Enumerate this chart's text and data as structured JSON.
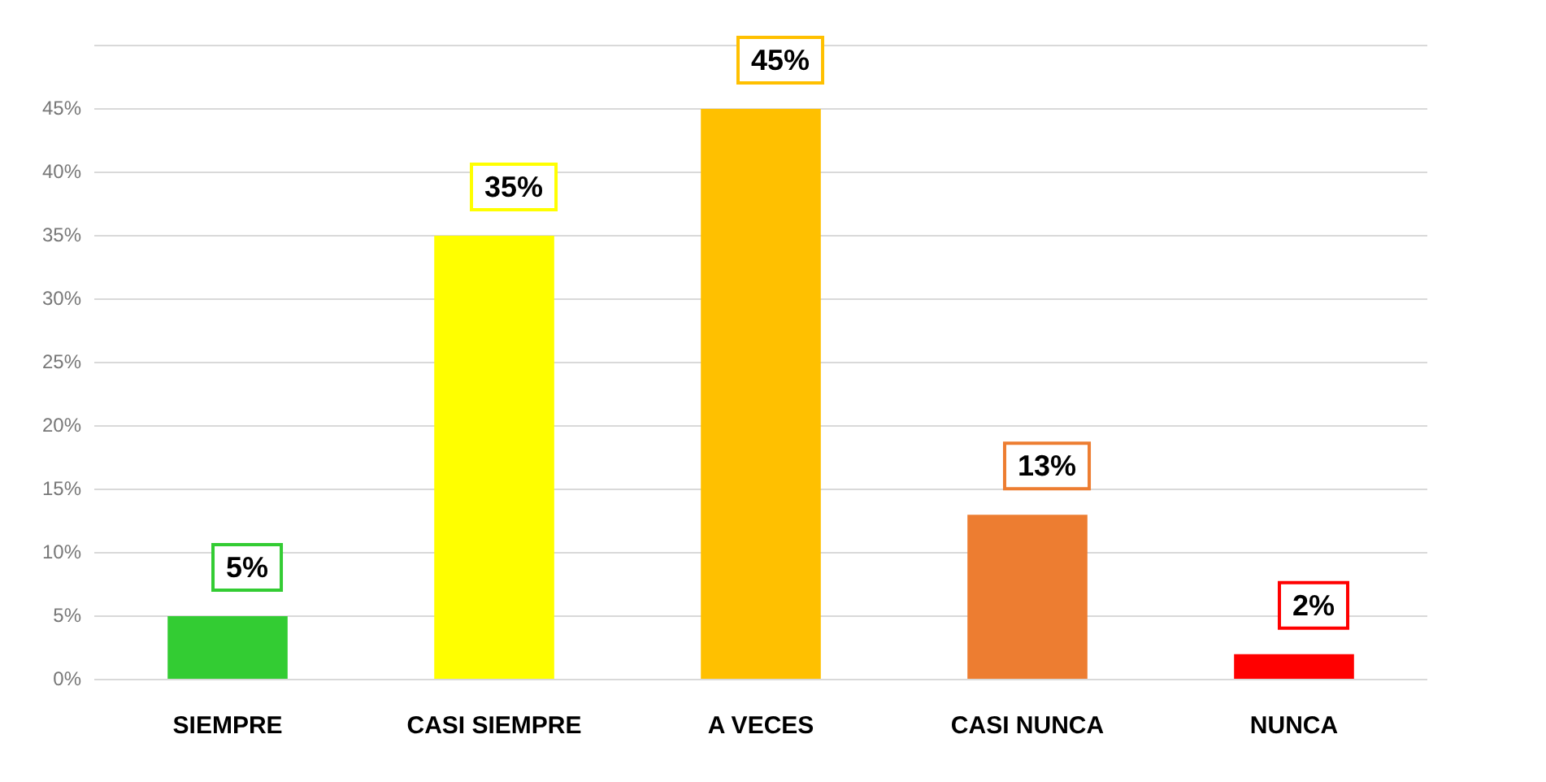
{
  "chart_data": {
    "type": "bar",
    "categories": [
      "SIEMPRE",
      "CASI SIEMPRE",
      "A VECES",
      "CASI NUNCA",
      "NUNCA"
    ],
    "values": [
      5,
      35,
      45,
      13,
      2
    ],
    "colors": [
      "#33cc33",
      "#ffff00",
      "#ffc000",
      "#ed7d31",
      "#ff0000"
    ],
    "value_labels": [
      "5%",
      "35%",
      "45%",
      "13%",
      "2%"
    ],
    "ylim": [
      0,
      50
    ],
    "yticks": [
      {
        "value": 0,
        "label": "0%"
      },
      {
        "value": 5,
        "label": "5%"
      },
      {
        "value": 10,
        "label": "10%"
      },
      {
        "value": 15,
        "label": "15%"
      },
      {
        "value": 20,
        "label": "20%"
      },
      {
        "value": 25,
        "label": "25%"
      },
      {
        "value": 30,
        "label": "30%"
      },
      {
        "value": 35,
        "label": "35%"
      },
      {
        "value": 40,
        "label": "40%"
      },
      {
        "value": 45,
        "label": "45%"
      },
      {
        "value": 50,
        "label": null
      }
    ],
    "grid": "y",
    "legend": false
  }
}
